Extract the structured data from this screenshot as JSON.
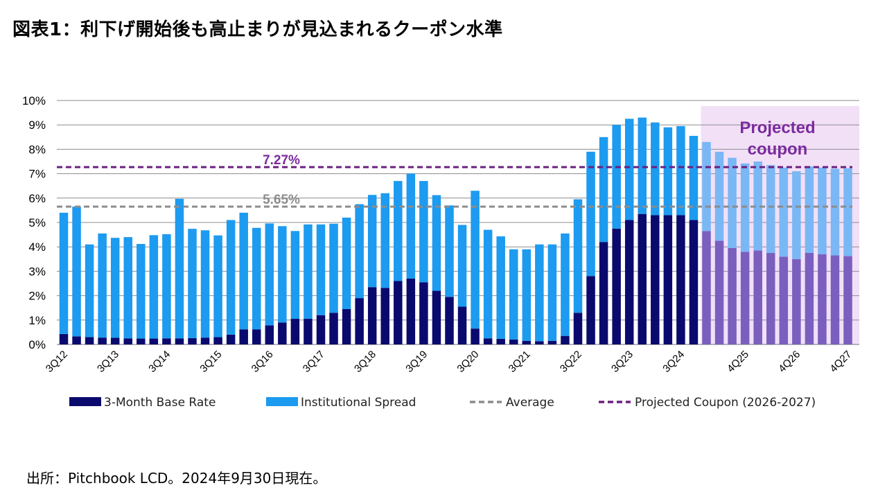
{
  "title": "図表1：利下げ開始後も高止まりが見込まれるクーポン水準",
  "source": "出所：Pitchbook LCD。2024年9月30日現在。",
  "chart_data": {
    "type": "bar",
    "stacked": true,
    "ylim": [
      0,
      10
    ],
    "yticks": [
      "0%",
      "1%",
      "2%",
      "3%",
      "4%",
      "5%",
      "6%",
      "7%",
      "8%",
      "9%",
      "10%"
    ],
    "xtick_labels": [
      "3Q12",
      "3Q13",
      "3Q14",
      "3Q15",
      "3Q16",
      "3Q17",
      "3Q18",
      "3Q19",
      "3Q20",
      "3Q21",
      "3Q22",
      "3Q23",
      "3Q24",
      "4Q25",
      "4Q26",
      "4Q27"
    ],
    "xtick_indices": [
      0,
      4,
      8,
      12,
      16,
      20,
      24,
      28,
      32,
      36,
      40,
      44,
      48,
      53,
      57,
      61
    ],
    "series": [
      {
        "name": "3-Month Base Rate",
        "values": [
          0.43,
          0.33,
          0.3,
          0.28,
          0.27,
          0.25,
          0.24,
          0.24,
          0.25,
          0.25,
          0.26,
          0.28,
          0.3,
          0.4,
          0.62,
          0.62,
          0.78,
          0.9,
          1.05,
          1.05,
          1.2,
          1.3,
          1.45,
          1.9,
          2.35,
          2.32,
          2.6,
          2.7,
          2.55,
          2.2,
          1.95,
          1.55,
          0.65,
          0.25,
          0.23,
          0.2,
          0.15,
          0.13,
          0.15,
          0.35,
          1.3,
          2.8,
          4.2,
          4.75,
          5.1,
          5.35,
          5.3,
          5.3,
          5.3,
          5.1,
          4.65,
          4.25,
          3.95,
          3.8,
          3.85,
          3.75,
          3.6,
          3.5,
          3.75,
          3.7,
          3.65,
          3.62
        ]
      },
      {
        "name": "Institutional Spread",
        "values": [
          4.97,
          5.32,
          3.8,
          4.27,
          4.1,
          4.15,
          3.88,
          4.24,
          4.27,
          5.72,
          4.48,
          4.4,
          4.17,
          4.7,
          4.78,
          4.16,
          4.18,
          3.95,
          3.6,
          3.87,
          3.72,
          3.65,
          3.75,
          3.85,
          3.78,
          3.88,
          4.1,
          4.3,
          4.15,
          3.92,
          3.75,
          3.35,
          5.65,
          4.45,
          4.2,
          3.7,
          3.75,
          3.97,
          3.95,
          4.2,
          4.65,
          5.1,
          4.3,
          4.25,
          4.15,
          3.95,
          3.8,
          3.6,
          3.65,
          3.45,
          3.65,
          3.65,
          3.7,
          3.62,
          3.65,
          3.6,
          3.65,
          3.6,
          3.55,
          3.55,
          3.55,
          3.6
        ]
      }
    ],
    "projected_start_index": 50,
    "lines": [
      {
        "name": "Average",
        "value": 5.65,
        "label": "5.65%",
        "color": "#8c8c8c"
      },
      {
        "name": "Projected Coupon (2026-2027)",
        "value": 7.27,
        "label": "7.27%",
        "color": "#6b1f7e"
      }
    ],
    "projected_box_label": [
      "Projected",
      "coupon"
    ],
    "legend": [
      {
        "label": "3-Month Base Rate",
        "kind": "bar",
        "color": "#0a0a6e"
      },
      {
        "label": "Institutional Spread",
        "kind": "bar",
        "color": "#1c9bf0"
      },
      {
        "label": "Average",
        "kind": "dash",
        "color": "#8c8c8c"
      },
      {
        "label": "Projected Coupon (2026-2027)",
        "kind": "dash",
        "color": "#6b1f7e"
      }
    ],
    "colors": {
      "base": "#0a0a6e",
      "spread": "#1c9bf0",
      "base_projected": "#7a5fbf",
      "spread_projected": "#7ab7f5",
      "projected_bg": "#f2e0f7",
      "projected_label": "#7b2a9e",
      "grid": "#8c8c8c",
      "axis_text": "#000000"
    }
  }
}
